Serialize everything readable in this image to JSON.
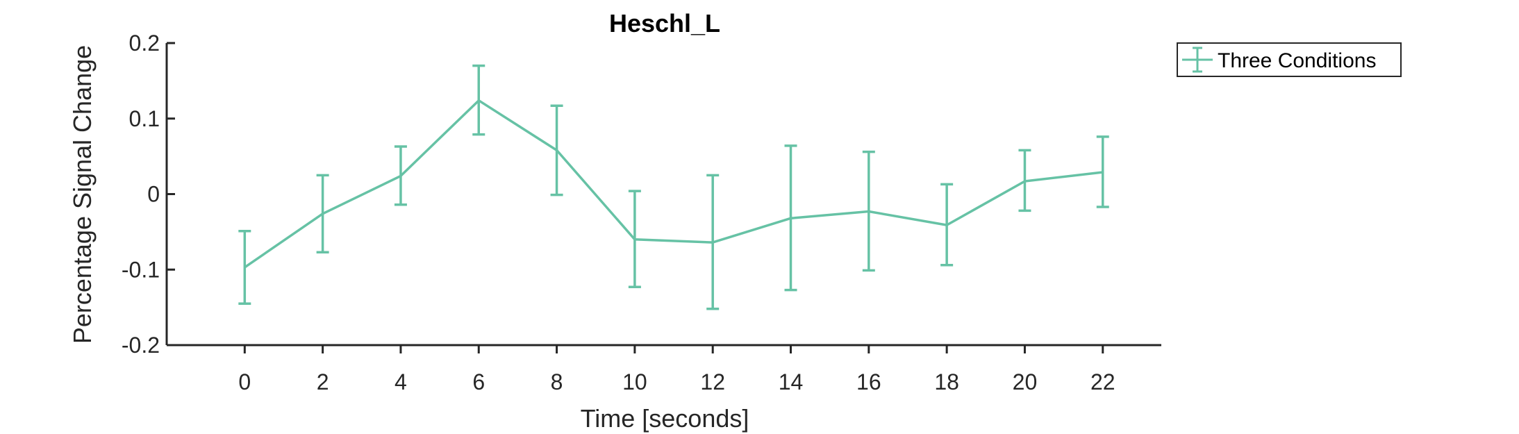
{
  "chart_data": {
    "type": "line",
    "title": "Heschl_L",
    "xlabel": "Time [seconds]",
    "ylabel": "Percentage Signal Change",
    "xlim": [
      -2,
      23.5
    ],
    "ylim": [
      -0.2,
      0.2
    ],
    "x_ticks": [
      0,
      2,
      4,
      6,
      8,
      10,
      12,
      14,
      16,
      18,
      20,
      22
    ],
    "x_tick_labels": [
      "0",
      "2",
      "4",
      "6",
      "8",
      "10",
      "12",
      "14",
      "16",
      "18",
      "20",
      "22"
    ],
    "y_ticks": [
      -0.2,
      -0.1,
      0,
      0.1,
      0.2
    ],
    "y_tick_labels": [
      "-0.2",
      "-0.1",
      "0",
      "0.1",
      "0.2"
    ],
    "grid": false,
    "legend_position": "outside-top-right",
    "series": [
      {
        "name": "Three Conditions",
        "color": "#66c2a5",
        "x": [
          0,
          2,
          4,
          6,
          8,
          10,
          12,
          14,
          16,
          18,
          20,
          22
        ],
        "y": [
          -0.097,
          -0.026,
          0.024,
          0.124,
          0.058,
          -0.06,
          -0.064,
          -0.032,
          -0.023,
          -0.041,
          0.017,
          0.029
        ],
        "error_low": [
          -0.145,
          -0.077,
          -0.014,
          0.079,
          -0.001,
          -0.123,
          -0.152,
          -0.127,
          -0.101,
          -0.094,
          -0.022,
          -0.017
        ],
        "error_high": [
          -0.049,
          0.025,
          0.063,
          0.17,
          0.117,
          0.004,
          0.025,
          0.064,
          0.056,
          0.013,
          0.058,
          0.076
        ]
      }
    ]
  }
}
